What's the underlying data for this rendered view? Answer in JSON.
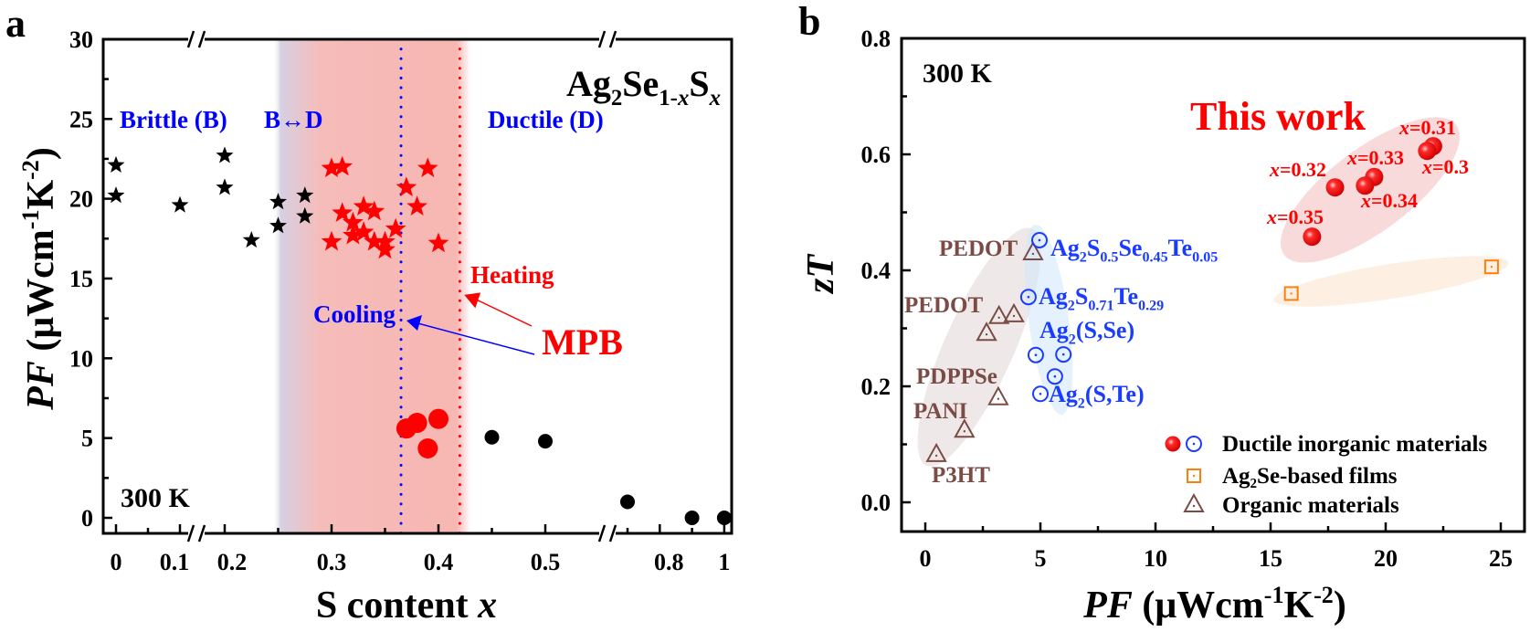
{
  "colors": {
    "axis": "#000000",
    "brittle_text": "#0000ff",
    "red": "#ff0000",
    "blue": "#1a3cff",
    "orange": "#ff7f0e",
    "brown": "#7b4b45",
    "shade": "#f7b7b3"
  },
  "chart_data": [
    {
      "panel_label": "a",
      "type": "scatter",
      "title": "",
      "formula": [
        {
          "t": "Ag"
        },
        {
          "t": "2",
          "sub": true
        },
        {
          "t": "Se"
        },
        {
          "t": "1-",
          "sub": true
        },
        {
          "t": "x",
          "sub": true,
          "i": true
        },
        {
          "t": "S"
        },
        {
          "t": "x",
          "sub": true,
          "i": true
        }
      ],
      "xlabel": [
        {
          "t": "S content "
        },
        {
          "t": "x",
          "i": true
        }
      ],
      "ylabel": [
        {
          "t": "PF",
          "i": true
        },
        {
          "t": " (μWcm"
        },
        {
          "t": "-1",
          "sup": true
        },
        {
          "t": "K"
        },
        {
          "t": "-2",
          "sup": true
        },
        {
          "t": ")"
        }
      ],
      "xaxis": {
        "broken": true,
        "segments": [
          [
            0,
            0.1
          ],
          [
            0.2,
            0.5
          ],
          [
            0.7,
            1.0
          ]
        ],
        "tick_labels": [
          "0",
          "0.1",
          "0.2",
          "0.3",
          "0.4",
          "0.5",
          "0.8",
          "1"
        ],
        "tick_values": [
          0,
          0.1,
          0.2,
          0.3,
          0.4,
          0.5,
          0.8,
          1.0
        ],
        "minor_ticks": [
          0.05,
          0.25,
          0.35,
          0.45,
          0.7,
          0.9
        ]
      },
      "ylim": [
        -1,
        30
      ],
      "yticks": [
        0,
        5,
        10,
        15,
        20,
        25,
        30
      ],
      "ytick_labels": [
        "0",
        "5",
        "10",
        "15",
        "20",
        "25",
        "30"
      ],
      "regions": [
        {
          "label": "Brittle (B)"
        },
        {
          "label": "B↔D"
        },
        {
          "label": "Ductile (D)"
        }
      ],
      "shaded_range": [
        0.245,
        0.43
      ],
      "vlines": [
        {
          "name": "Cooling",
          "x": 0.365,
          "color": "#0000ff"
        },
        {
          "name": "Heating",
          "x": 0.42,
          "color": "#ff0000"
        }
      ],
      "annotations": {
        "mpb": "MPB",
        "cooling": "Cooling",
        "heating": "Heating",
        "temp": "300 K"
      },
      "series": [
        {
          "name": "Brittle stars",
          "marker": "star",
          "color": "#000000",
          "x": [
            0,
            0,
            0.1,
            0.2,
            0.2,
            0.225,
            0.25,
            0.25,
            0.275,
            0.275
          ],
          "y": [
            22.1,
            20.2,
            19.6,
            22.7,
            20.7,
            17.4,
            19.8,
            18.3,
            20.2,
            18.9
          ]
        },
        {
          "name": "MPB stars",
          "marker": "star",
          "color": "#ff0000",
          "x": [
            0.3,
            0.31,
            0.3,
            0.31,
            0.32,
            0.32,
            0.33,
            0.33,
            0.34,
            0.34,
            0.35,
            0.35,
            0.36,
            0.37,
            0.38,
            0.39,
            0.4
          ],
          "y": [
            21.9,
            22.0,
            17.3,
            19.1,
            18.5,
            17.7,
            19.5,
            17.9,
            19.2,
            17.3,
            17.3,
            16.8,
            18.1,
            20.7,
            19.5,
            21.9,
            17.2
          ]
        },
        {
          "name": "MPB circles",
          "marker": "circle",
          "color": "#ff0000",
          "x": [
            0.37,
            0.38,
            0.39,
            0.4
          ],
          "y": [
            5.6,
            5.95,
            4.35,
            6.2
          ]
        },
        {
          "name": "Ductile circles",
          "marker": "circle",
          "color": "#000000",
          "x": [
            0.45,
            0.5,
            0.7,
            0.9,
            1.0
          ],
          "y": [
            5.05,
            4.8,
            1.0,
            0.0,
            0.0
          ]
        }
      ]
    },
    {
      "panel_label": "b",
      "type": "scatter",
      "xlabel": [
        {
          "t": "PF",
          "i": true
        },
        {
          "t": " (μWcm"
        },
        {
          "t": "-1",
          "sup": true
        },
        {
          "t": "K"
        },
        {
          "t": "-2",
          "sup": true
        },
        {
          "t": ")"
        }
      ],
      "ylabel": [
        {
          "t": "zT",
          "i": true
        }
      ],
      "xlim": [
        -1.05,
        26.0
      ],
      "ylim": [
        -0.05,
        0.8
      ],
      "xticks": [
        0,
        5,
        10,
        15,
        20,
        25
      ],
      "xtick_labels": [
        "0",
        "5",
        "10",
        "15",
        "20",
        "25"
      ],
      "yticks": [
        0.0,
        0.2,
        0.4,
        0.6,
        0.8
      ],
      "ytick_labels": [
        "0.0",
        "0.2",
        "0.4",
        "0.6",
        "0.8"
      ],
      "annotations": {
        "temp": "300 K",
        "this_work": "This work"
      },
      "legend": {
        "placement": "bottom-right",
        "entries": [
          {
            "label": "Ductile inorganic materials",
            "marker": "ball+circle"
          },
          {
            "label": "Ag₂Se-based films",
            "marker": "square"
          },
          {
            "label": "Organic materials",
            "marker": "triangle"
          }
        ]
      },
      "series": [
        {
          "name": "This work",
          "marker": "ball",
          "color": "#ff0000",
          "points": [
            {
              "x": 22.06,
              "y": 0.614,
              "label": [
                {
                  "t": "x",
                  "i": true
                },
                {
                  "t": "=0.31"
                }
              ]
            },
            {
              "x": 21.8,
              "y": 0.606,
              "label": [
                {
                  "t": "x",
                  "i": true
                },
                {
                  "t": "=0.3"
                }
              ]
            },
            {
              "x": 19.5,
              "y": 0.561,
              "label": [
                {
                  "t": "x",
                  "i": true
                },
                {
                  "t": "=0.33"
                }
              ]
            },
            {
              "x": 19.1,
              "y": 0.546,
              "label": [
                {
                  "t": "x",
                  "i": true
                },
                {
                  "t": "=0.34"
                }
              ]
            },
            {
              "x": 17.8,
              "y": 0.543,
              "label": [
                {
                  "t": "x",
                  "i": true
                },
                {
                  "t": "=0.32"
                }
              ]
            },
            {
              "x": 16.8,
              "y": 0.458,
              "label": [
                {
                  "t": "x",
                  "i": true
                },
                {
                  "t": "=0.35"
                }
              ]
            }
          ]
        },
        {
          "name": "Ductile inorganic materials",
          "marker": "circle",
          "color": "#1a3cff",
          "points": [
            {
              "x": 4.96,
              "y": 0.452,
              "label": [
                {
                  "t": "Ag"
                },
                {
                  "t": "2",
                  "sub": true
                },
                {
                  "t": "S"
                },
                {
                  "t": "0.5",
                  "sub": true
                },
                {
                  "t": "Se"
                },
                {
                  "t": "0.45",
                  "sub": true
                },
                {
                  "t": "Te"
                },
                {
                  "t": "0.05",
                  "sub": true
                }
              ]
            },
            {
              "x": 4.48,
              "y": 0.354,
              "label": [
                {
                  "t": "Ag"
                },
                {
                  "t": "2",
                  "sub": true
                },
                {
                  "t": "S"
                },
                {
                  "t": "0.71",
                  "sub": true
                },
                {
                  "t": "Te"
                },
                {
                  "t": "0.29",
                  "sub": true
                }
              ]
            },
            {
              "x": 4.8,
              "y": 0.254,
              "label": [
                {
                  "t": "Ag"
                },
                {
                  "t": "2",
                  "sub": true
                },
                {
                  "t": "(S,Se)"
                }
              ]
            },
            {
              "x": 6.0,
              "y": 0.255,
              "label": null
            },
            {
              "x": 5.63,
              "y": 0.217,
              "label": null
            },
            {
              "x": 5.0,
              "y": 0.187,
              "label": [
                {
                  "t": "Ag"
                },
                {
                  "t": "2",
                  "sub": true
                },
                {
                  "t": "(S,Te)"
                }
              ]
            }
          ]
        },
        {
          "name": "Ag2Se-based films",
          "marker": "square",
          "color": "#ff7f0e",
          "points": [
            {
              "x": 15.9,
              "y": 0.36
            },
            {
              "x": 24.6,
              "y": 0.406
            }
          ]
        },
        {
          "name": "Organic materials",
          "marker": "triangle",
          "color": "#7b4b45",
          "points": [
            {
              "x": 4.68,
              "y": 0.43,
              "label": "PEDOT"
            },
            {
              "x": 3.2,
              "y": 0.32,
              "label": "PEDOT"
            },
            {
              "x": 3.85,
              "y": 0.323,
              "label": null
            },
            {
              "x": 2.66,
              "y": 0.291,
              "label": null
            },
            {
              "x": 3.17,
              "y": 0.18,
              "label": "PDPPSe"
            },
            {
              "x": 1.7,
              "y": 0.124,
              "label": "PANI"
            },
            {
              "x": 0.48,
              "y": 0.082,
              "label": "P3HT"
            }
          ]
        }
      ]
    }
  ]
}
